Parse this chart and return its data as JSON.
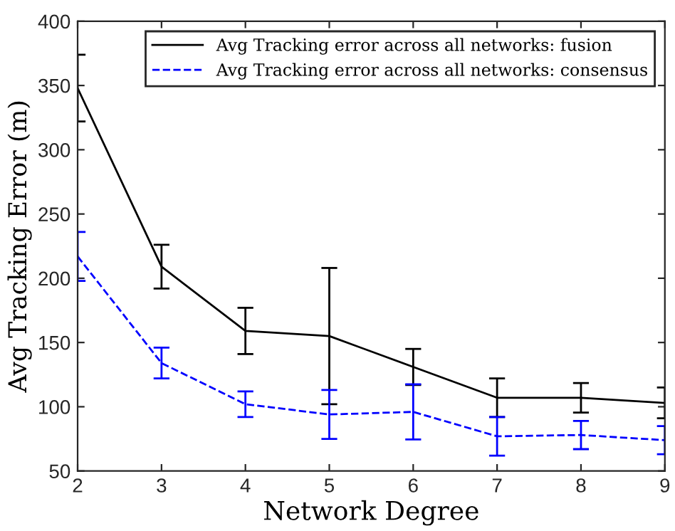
{
  "chart_data": {
    "type": "line",
    "xlabel": "Network Degree",
    "ylabel": "Avg Tracking Error (m)",
    "x": [
      2,
      3,
      4,
      5,
      6,
      7,
      8,
      9
    ],
    "series": [
      {
        "name": "Avg Tracking error across all networks: fusion",
        "color": "#000000",
        "line_style": "solid",
        "values": [
          348,
          209,
          159,
          155,
          131,
          107,
          107,
          103
        ],
        "errors": [
          26,
          17,
          18,
          53,
          14,
          15,
          11.5,
          12
        ]
      },
      {
        "name": "Avg Tracking error across all networks: consensus",
        "color": "#0000ff",
        "line_style": "dashed",
        "values": [
          217,
          134,
          102,
          94,
          96,
          77,
          78,
          74
        ],
        "errors": [
          19,
          12,
          10,
          19,
          21.5,
          15,
          11,
          11
        ]
      }
    ],
    "xlim": [
      2,
      9
    ],
    "ylim": [
      50,
      400
    ],
    "xticks": [
      2,
      3,
      4,
      5,
      6,
      7,
      8,
      9
    ],
    "yticks": [
      50,
      100,
      150,
      200,
      250,
      300,
      350,
      400
    ],
    "grid": false,
    "legend": "top right",
    "marker": "none"
  }
}
